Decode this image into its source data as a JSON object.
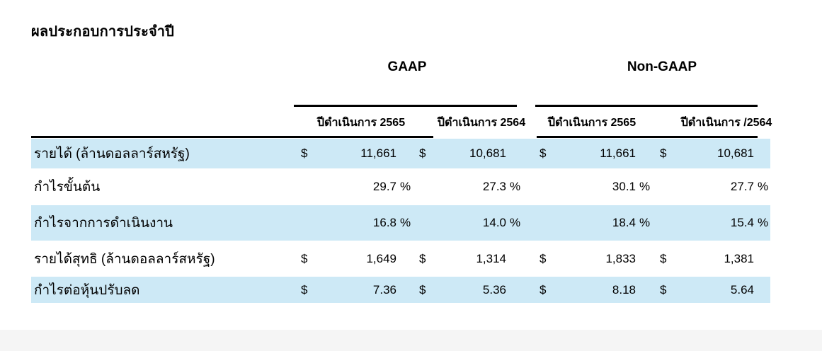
{
  "page": {
    "title": "ผลประกอบการประจำปี"
  },
  "table": {
    "highlight_color": "#cde9f6",
    "group_headers": [
      {
        "label": "GAAP"
      },
      {
        "label": "Non-GAAP"
      }
    ],
    "column_headers": [
      {
        "label": "ปีดำเนินการ 2565"
      },
      {
        "label": "ปีดำเนินการ 2564"
      },
      {
        "label": "ปีดำเนินการ 2565"
      },
      {
        "label": "ปีดำเนินการ /2564"
      }
    ],
    "rows": [
      {
        "label": "รายได้ (ล้านดอลลาร์สหรัฐ)",
        "highlighted": true,
        "cells": [
          {
            "cur": "$",
            "val": "11,661",
            "pct": ""
          },
          {
            "cur": "$",
            "val": "10,681",
            "pct": ""
          },
          {
            "cur": "$",
            "val": "11,661",
            "pct": ""
          },
          {
            "cur": "$",
            "val": "10,681",
            "pct": ""
          }
        ]
      },
      {
        "label": "กำไรขั้นต้น",
        "highlighted": false,
        "cells": [
          {
            "cur": "",
            "val": "29.7",
            "pct": "%"
          },
          {
            "cur": "",
            "val": "27.3",
            "pct": "%"
          },
          {
            "cur": "",
            "val": "30.1",
            "pct": "%"
          },
          {
            "cur": "",
            "val": "27.7",
            "pct": "%"
          }
        ]
      },
      {
        "label": "กำไรจากการดำเนินงาน",
        "highlighted": true,
        "cells": [
          {
            "cur": "",
            "val": "16.8",
            "pct": "%"
          },
          {
            "cur": "",
            "val": "14.0",
            "pct": "%"
          },
          {
            "cur": "",
            "val": "18.4",
            "pct": "%"
          },
          {
            "cur": "",
            "val": "15.4",
            "pct": "%"
          }
        ]
      },
      {
        "label": "รายได้สุทธิ (ล้านดอลลาร์สหรัฐ)",
        "highlighted": false,
        "cells": [
          {
            "cur": "$",
            "val": "1,649",
            "pct": ""
          },
          {
            "cur": "$",
            "val": "1,314",
            "pct": ""
          },
          {
            "cur": "$",
            "val": "1,833",
            "pct": ""
          },
          {
            "cur": "$",
            "val": "1,381",
            "pct": ""
          }
        ]
      },
      {
        "label": "กำไรต่อหุ้นปรับลด",
        "highlighted": true,
        "cells": [
          {
            "cur": "$",
            "val": "7.36",
            "pct": ""
          },
          {
            "cur": "$",
            "val": "5.36",
            "pct": ""
          },
          {
            "cur": "$",
            "val": "8.18",
            "pct": ""
          },
          {
            "cur": "$",
            "val": "5.64",
            "pct": ""
          }
        ]
      }
    ]
  }
}
